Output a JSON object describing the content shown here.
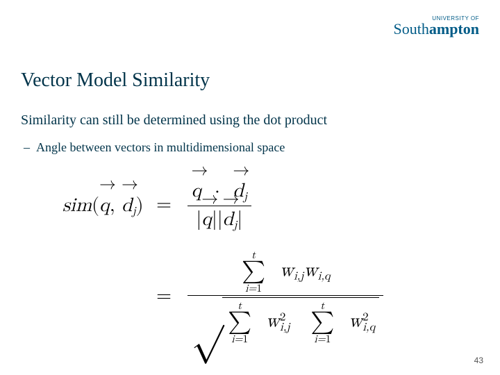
{
  "logo": {
    "small": "UNIVERSITY OF",
    "big_prefix": "South",
    "big_bold": "ampton"
  },
  "title": "Vector Model Similarity",
  "body": "Similarity can still be determined using the dot product",
  "bullet_dash": "–",
  "bullet_text": "Angle between vectors in multidimensional space",
  "page_number": "43",
  "math": {
    "sim": "sim",
    "q": "q",
    "d": "d",
    "j": "j",
    "w": "w",
    "i": "i",
    "t": "t",
    "eq": "=",
    "comma": ",",
    "dot": "·",
    "one": "1",
    "two": "2",
    "lparen": "(",
    "rparen": ")",
    "bar": "|",
    "arrow": "→",
    "sigma": "∑",
    "surd": "√"
  }
}
